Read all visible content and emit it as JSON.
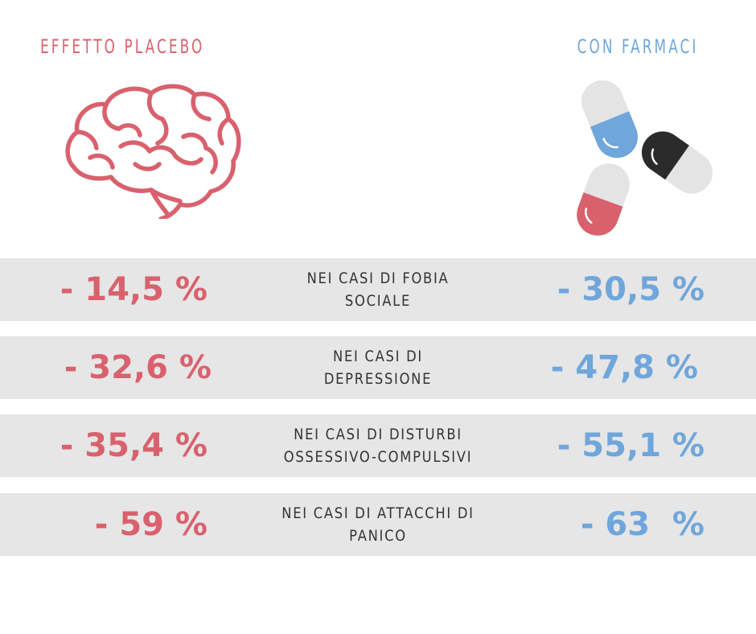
{
  "header": {
    "left_title": "EFFETTO PLACEBO",
    "right_title": "CON FARMACI"
  },
  "illustrations": {
    "left_icon": "brain-icon",
    "right_icon": "pills-icon"
  },
  "colors": {
    "placebo": "#d9616d",
    "drugs": "#6fa6db",
    "row_bg": "#e6e6e6",
    "text": "#333333"
  },
  "rows": [
    {
      "placebo": "- 14,5 %",
      "label": "NEI CASI DI FOBIA\nSOCIALE",
      "drugs": "- 30,5 %"
    },
    {
      "placebo": "- 32,6 %",
      "label": "NEI CASI DI\nDEPRESSIONE",
      "drugs": "- 47,8 %"
    },
    {
      "placebo": "- 35,4 %",
      "label": "NEI CASI DI DISTURBI\nOSSESSIVO-COMPULSIVI",
      "drugs": "- 55,1 %"
    },
    {
      "placebo": "- 59 %",
      "label": "NEI CASI DI ATTACCHI DI\nPANICO",
      "drugs": "- 63  %"
    }
  ]
}
